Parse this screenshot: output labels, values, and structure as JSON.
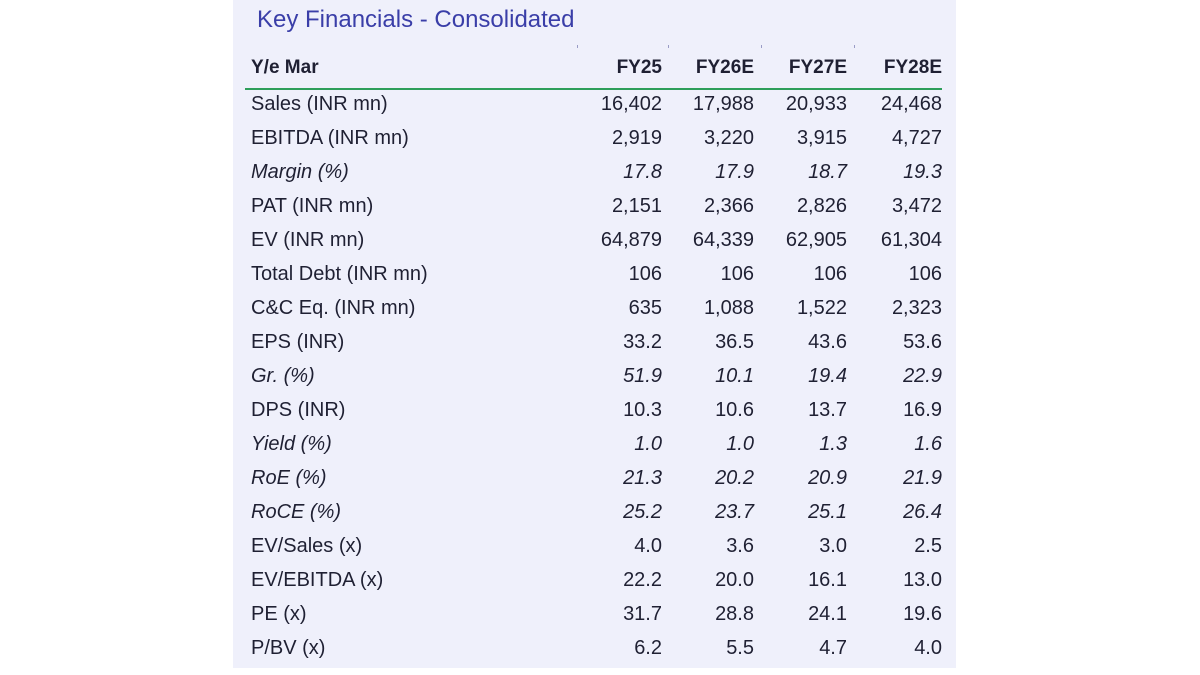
{
  "title": "Key Financials - Consolidated",
  "header": {
    "label": "Y/e Mar",
    "years": [
      "FY25",
      "FY26E",
      "FY27E",
      "FY28E"
    ]
  },
  "rows": [
    {
      "label": "Sales (INR mn)",
      "values": [
        "16,402",
        "17,988",
        "20,933",
        "24,468"
      ],
      "italic": false
    },
    {
      "label": "EBITDA (INR mn)",
      "values": [
        "2,919",
        "3,220",
        "3,915",
        "4,727"
      ],
      "italic": false
    },
    {
      "label": "Margin (%)",
      "values": [
        "17.8",
        "17.9",
        "18.7",
        "19.3"
      ],
      "italic": true
    },
    {
      "label": "PAT (INR mn)",
      "values": [
        "2,151",
        "2,366",
        "2,826",
        "3,472"
      ],
      "italic": false
    },
    {
      "label": "EV (INR mn)",
      "values": [
        "64,879",
        "64,339",
        "62,905",
        "61,304"
      ],
      "italic": false
    },
    {
      "label": "Total Debt (INR mn)",
      "values": [
        "106",
        "106",
        "106",
        "106"
      ],
      "italic": false
    },
    {
      "label": "C&C Eq. (INR mn)",
      "values": [
        "635",
        "1,088",
        "1,522",
        "2,323"
      ],
      "italic": false
    },
    {
      "label": "EPS (INR)",
      "values": [
        "33.2",
        "36.5",
        "43.6",
        "53.6"
      ],
      "italic": false
    },
    {
      "label": "Gr. (%)",
      "values": [
        "51.9",
        "10.1",
        "19.4",
        "22.9"
      ],
      "italic": true
    },
    {
      "label": "DPS (INR)",
      "values": [
        "10.3",
        "10.6",
        "13.7",
        "16.9"
      ],
      "italic": false
    },
    {
      "label": "Yield (%)",
      "values": [
        "1.0",
        "1.0",
        "1.3",
        "1.6"
      ],
      "italic": true
    },
    {
      "label": "RoE (%)",
      "values": [
        "21.3",
        "20.2",
        "20.9",
        "21.9"
      ],
      "italic": true
    },
    {
      "label": "RoCE (%)",
      "values": [
        "25.2",
        "23.7",
        "25.1",
        "26.4"
      ],
      "italic": true
    },
    {
      "label": "EV/Sales (x)",
      "values": [
        "4.0",
        "3.6",
        "3.0",
        "2.5"
      ],
      "italic": false
    },
    {
      "label": "EV/EBITDA (x)",
      "values": [
        "22.2",
        "20.0",
        "16.1",
        "13.0"
      ],
      "italic": false
    },
    {
      "label": "PE (x)",
      "values": [
        "31.7",
        "28.8",
        "24.1",
        "19.6"
      ],
      "italic": false
    },
    {
      "label": "P/BV (x)",
      "values": [
        "6.2",
        "5.5",
        "4.7",
        "4.0"
      ],
      "italic": false
    }
  ],
  "colors": {
    "title": "#3a3ea8",
    "panel_background": "#eff0fb",
    "header_rule": "#2e9e5a",
    "text": "#1f2033"
  }
}
